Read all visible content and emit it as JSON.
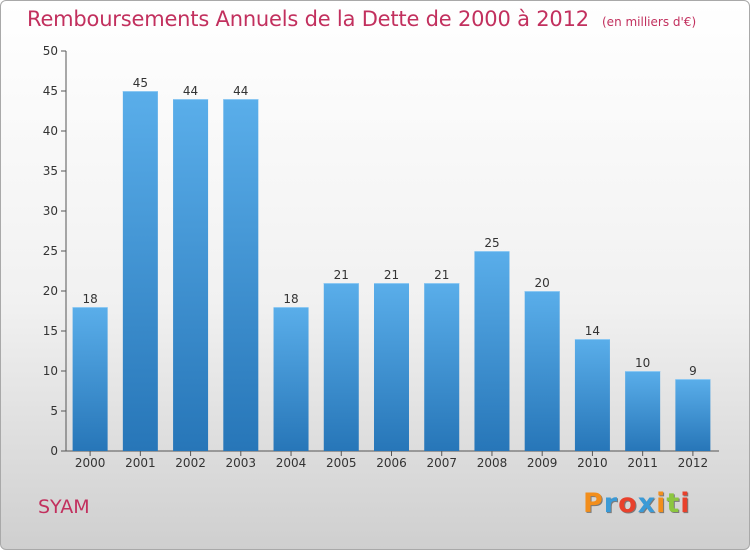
{
  "header": {
    "title": "Remboursements Annuels de la Dette de 2000 à 2012",
    "subtitle": "(en milliers d'€)"
  },
  "footer": {
    "commune": "SYAM",
    "logo_text": "Proxiti",
    "logo_colors": [
      "#f28e1c",
      "#3b9ad6",
      "#e8412c",
      "#3b9ad6",
      "#f28e1c",
      "#8cc63f",
      "#e8412c"
    ]
  },
  "colors": {
    "title": "#c2305e",
    "bar_top": "#5aaeea",
    "bar_bottom": "#2776b8",
    "axis": "#555555"
  },
  "chart_data": {
    "type": "bar",
    "title": "Remboursements Annuels de la Dette de 2000 à 2012",
    "subtitle": "(en milliers d'€)",
    "categories": [
      "2000",
      "2001",
      "2002",
      "2003",
      "2004",
      "2005",
      "2006",
      "2007",
      "2008",
      "2009",
      "2010",
      "2011",
      "2012"
    ],
    "values": [
      18,
      45,
      44,
      44,
      18,
      21,
      21,
      21,
      25,
      20,
      14,
      10,
      9
    ],
    "ylim": [
      0,
      50
    ],
    "yticks": [
      0,
      5,
      10,
      15,
      20,
      25,
      30,
      35,
      40,
      45,
      50
    ],
    "xlabel": "",
    "ylabel": "",
    "grid": false,
    "data_labels": true
  }
}
